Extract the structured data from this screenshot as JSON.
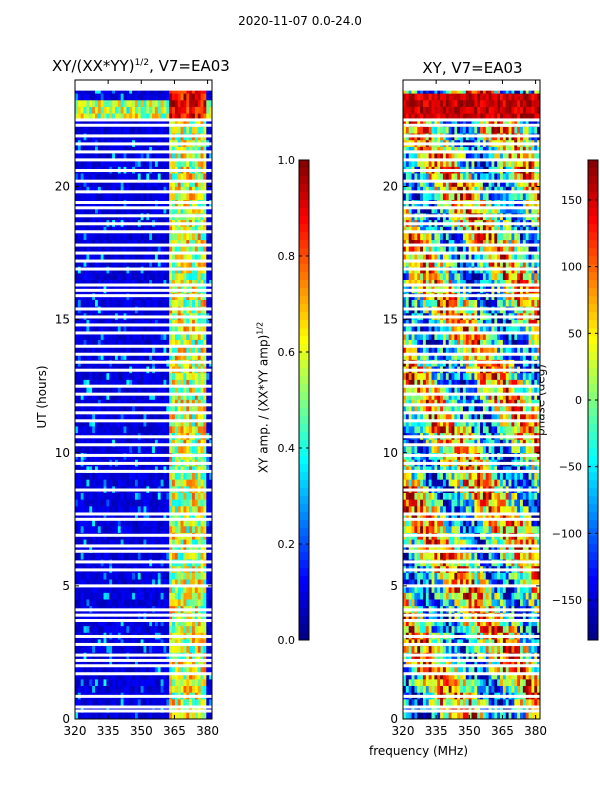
{
  "figure_title": "2020-11-07 0.0-24.0",
  "chart_data": [
    {
      "type": "heatmap",
      "title": "XY/(XX*YY)",
      "title_exponent": "1/2",
      "title_suffix": ", V7=EA03",
      "xlabel": "",
      "ylabel": "UT (hours)",
      "xlim": [
        320,
        382
      ],
      "ylim": [
        0,
        24
      ],
      "xticks": [
        320,
        335,
        350,
        365,
        380
      ],
      "yticks": [
        0,
        5,
        10,
        15,
        20
      ],
      "colorbar": {
        "label": "XY amp. / (XX*YY amp)",
        "label_exponent": "1/2",
        "min": 0.0,
        "max": 1.0,
        "ticks": [
          "0.0",
          "0.2",
          "0.4",
          "0.6",
          "0.8",
          "1.0"
        ],
        "tick_values": [
          0,
          0.2,
          0.4,
          0.6,
          0.8,
          1.0
        ]
      },
      "bright_band_mhz": [
        363,
        380
      ],
      "flagged_hours": [
        0.3,
        0.45,
        0.85,
        1.7,
        2.0,
        2.2,
        2.4,
        2.8,
        3.1,
        3.7,
        3.9,
        4.1,
        5.0,
        5.6,
        5.9,
        6.3,
        6.5,
        6.9,
        7.5,
        7.7,
        8.6,
        9.3,
        9.6,
        9.9,
        10.3,
        10.6,
        11.2,
        11.5,
        11.8,
        12.2,
        12.5,
        13.1,
        13.4,
        13.7,
        14.0,
        14.5,
        14.8,
        15.1,
        15.4,
        15.9,
        16.1,
        16.3,
        16.9,
        17.2,
        17.5,
        17.8,
        18.3,
        18.6,
        18.9,
        19.2,
        19.4,
        19.8,
        20.2,
        20.6,
        21.0,
        21.3,
        21.6,
        21.9,
        22.3,
        22.5
      ]
    },
    {
      "type": "heatmap",
      "title": "XY, V7=EA03",
      "xlabel": "frequency (MHz)",
      "ylabel": "",
      "xlim": [
        320,
        382
      ],
      "ylim": [
        0,
        24
      ],
      "xticks": [
        320,
        335,
        350,
        365,
        380
      ],
      "yticks": [
        0,
        5,
        10,
        15,
        20
      ],
      "colorbar": {
        "label": "phase (deg)",
        "min": -180,
        "max": 180,
        "ticks": [
          "−150",
          "−100",
          "−50",
          "0",
          "50",
          "100",
          "150"
        ],
        "tick_values": [
          -150,
          -100,
          -50,
          0,
          50,
          100,
          150
        ]
      },
      "flagged_hours": [
        0.3,
        0.45,
        0.85,
        1.7,
        2.0,
        2.2,
        2.4,
        2.8,
        3.1,
        3.7,
        3.9,
        4.1,
        5.0,
        5.6,
        5.9,
        6.3,
        6.5,
        6.9,
        7.5,
        7.7,
        8.6,
        9.3,
        9.6,
        9.9,
        10.3,
        10.6,
        11.2,
        11.5,
        11.8,
        12.2,
        12.5,
        13.1,
        13.4,
        13.7,
        14.0,
        14.5,
        14.8,
        15.1,
        15.4,
        15.9,
        16.1,
        16.3,
        16.9,
        17.2,
        17.5,
        17.8,
        18.3,
        18.6,
        18.9,
        19.2,
        19.4,
        19.8,
        20.2,
        20.6,
        21.0,
        21.3,
        21.6,
        21.9,
        22.3,
        22.5
      ]
    }
  ]
}
